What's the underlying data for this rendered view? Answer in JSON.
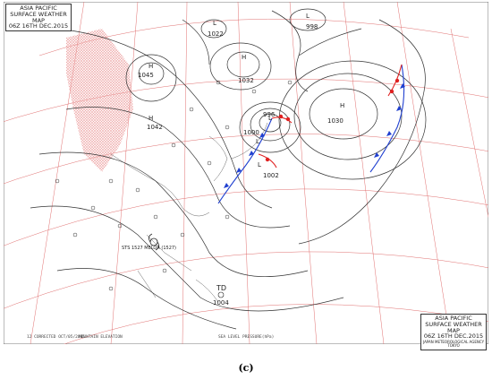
{
  "map": {
    "title_lines": [
      "ASIA PACIFIC",
      "SURFACE WEATHER MAP",
      "06Z 16TH DEC.2015"
    ],
    "agency": "JAPAN METEOROLOGICAL AGENCY TOKYO",
    "footer_left": "12 CORRECTED OCT/05/2005",
    "footer_mid": "MOUNTAIN ELEVATION",
    "footer_pressure": "SEA LEVEL PRESSURE(hPa)",
    "systems": [
      {
        "label": "H",
        "value": "1032"
      },
      {
        "label": "H",
        "value": "1030"
      },
      {
        "label": "H",
        "value": "1042"
      },
      {
        "label": "H",
        "value": "1045"
      },
      {
        "label": "L",
        "value": "1000"
      },
      {
        "label": "L",
        "value": "996"
      },
      {
        "label": "L",
        "value": "1002"
      },
      {
        "label": "L",
        "value": "998"
      },
      {
        "label": "L",
        "value": "1022"
      },
      {
        "label": "TD",
        "value": "1004"
      }
    ],
    "typhoon_label": "STS 1527 MELOR (1527)",
    "colors": {
      "isobar": "#333333",
      "grid": "#e07070",
      "cold_front": "#2040d0",
      "warm_front": "#e02020",
      "mountain": "#f2b8b8"
    }
  },
  "caption": "(c)"
}
